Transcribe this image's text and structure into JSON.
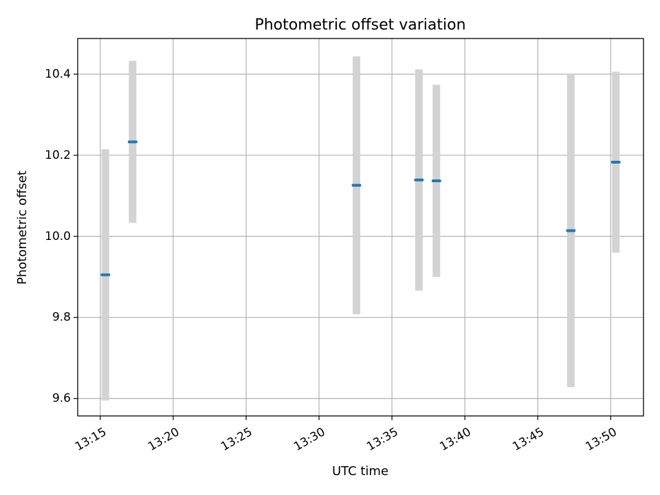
{
  "chart_data": {
    "type": "scatter",
    "title": "Photometric offset variation",
    "xlabel": "UTC time",
    "ylabel": "Photometric offset",
    "x_range": [
      "13:13:27",
      "13:52:15"
    ],
    "ylim": [
      9.557,
      10.488
    ],
    "x_ticks": [
      "13:15",
      "13:20",
      "13:25",
      "13:30",
      "13:35",
      "13:40",
      "13:45",
      "13:50"
    ],
    "y_ticks": [
      "9.6",
      "9.8",
      "10.0",
      "10.2",
      "10.4"
    ],
    "y_tick_values": [
      9.6,
      9.8,
      10.0,
      10.2,
      10.4
    ],
    "grid": true,
    "series": [
      {
        "points": [
          {
            "x": "13:15:21",
            "y": 9.905,
            "err": 0.31
          },
          {
            "x": "13:17:13",
            "y": 10.233,
            "err": 0.2
          },
          {
            "x": "13:32:34",
            "y": 10.126,
            "err": 0.318
          },
          {
            "x": "13:36:51",
            "y": 10.139,
            "err": 0.273
          },
          {
            "x": "13:38:03",
            "y": 10.137,
            "err": 0.237
          },
          {
            "x": "13:47:16",
            "y": 10.014,
            "err": 0.386
          },
          {
            "x": "13:50:21",
            "y": 10.183,
            "err": 0.223
          }
        ]
      }
    ],
    "colors": {
      "marker": "#1f77b4",
      "errorbar": "#d3d3d3",
      "grid": "#b0b0b0"
    }
  }
}
